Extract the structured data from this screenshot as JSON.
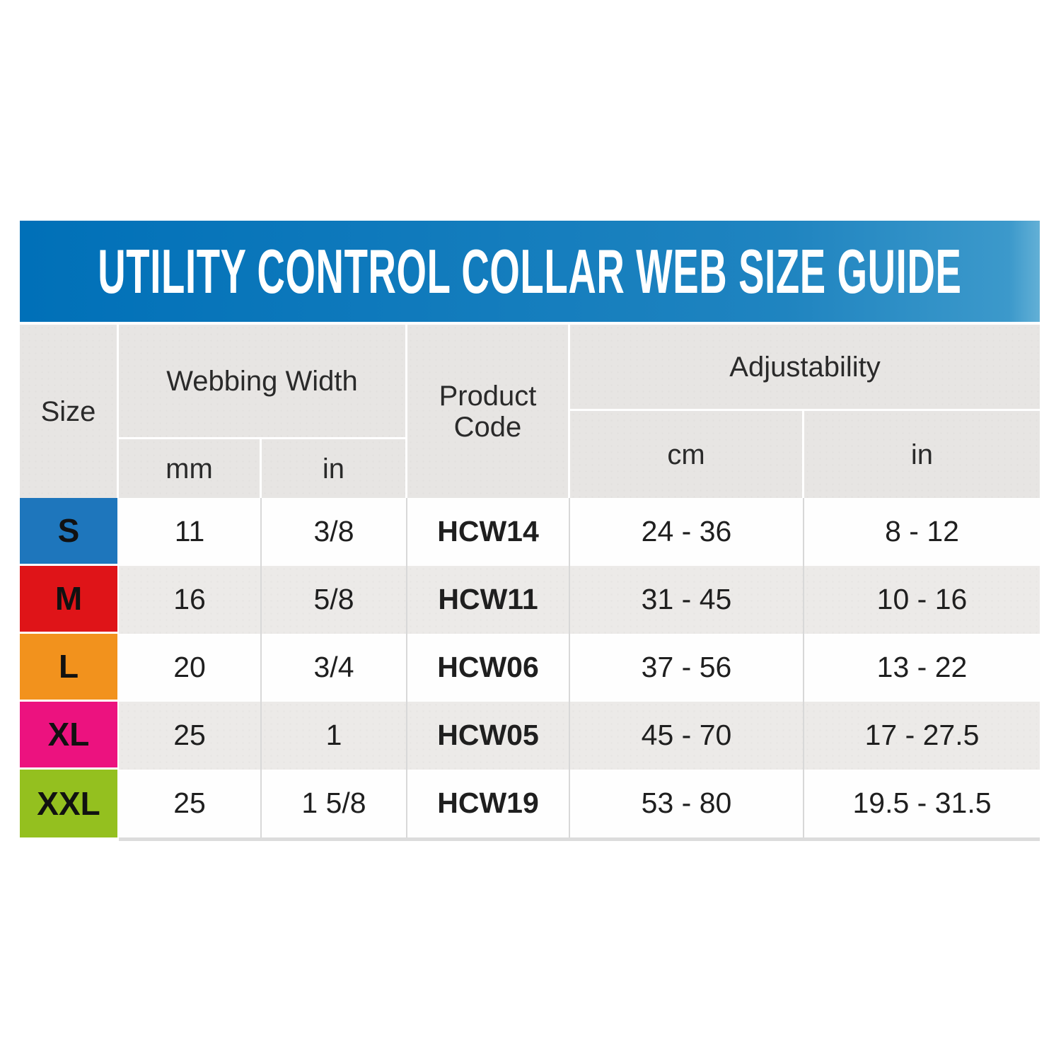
{
  "title": "UTILITY CONTROL COLLAR WEB SIZE GUIDE",
  "table": {
    "headers": {
      "size": "Size",
      "webbing_width": "Webbing Width",
      "product_code": [
        "Product",
        "Code"
      ],
      "adjustability": "Adjustability",
      "webbing_sub": [
        "mm",
        "in"
      ],
      "adjust_sub": [
        "cm",
        "in"
      ]
    },
    "rows": [
      {
        "size": "S",
        "color": "#1e76bc",
        "mm": "11",
        "in": "3/8",
        "code": "HCW14",
        "cm": "24 - 36",
        "inches": "8 - 12"
      },
      {
        "size": "M",
        "color": "#df1418",
        "mm": "16",
        "in": "5/8",
        "code": "HCW11",
        "cm": "31 - 45",
        "inches": "10 - 16"
      },
      {
        "size": "L",
        "color": "#f2921d",
        "mm": "20",
        "in": "3/4",
        "code": "HCW06",
        "cm": "37 - 56",
        "inches": "13 - 22"
      },
      {
        "size": "XL",
        "color": "#ec127f",
        "mm": "25",
        "in": "1",
        "code": "HCW05",
        "cm": "45 - 70",
        "inches": "17 - 27.5"
      },
      {
        "size": "XXL",
        "color": "#94c01f",
        "mm": "25",
        "in": "1 5/8",
        "code": "HCW19",
        "cm": "53 - 80",
        "inches": "19.5 - 31.5"
      }
    ]
  },
  "colors": {
    "title_bar_left": "#0070b8",
    "title_bar_right": "#3c99cb",
    "header_gray": "#e7e5e3",
    "alt_row_gray": "#eceae8",
    "divider_gray": "#d8d8d8",
    "size_s_blue": "#1e76bc",
    "size_m_red": "#df1418",
    "size_l_orange": "#f2921d",
    "size_xl_pink": "#ec127f",
    "size_xxl_green": "#94c01f"
  },
  "chart_data": {
    "type": "table",
    "title": "UTILITY CONTROL COLLAR WEB SIZE GUIDE",
    "columns": [
      "Size",
      "Webbing Width mm",
      "Webbing Width in",
      "Product Code",
      "Adjustability cm",
      "Adjustability in"
    ],
    "rows": [
      [
        "S",
        "11",
        "3/8",
        "HCW14",
        "24 - 36",
        "8 - 12"
      ],
      [
        "M",
        "16",
        "5/8",
        "HCW11",
        "31 - 45",
        "10 - 16"
      ],
      [
        "L",
        "20",
        "3/4",
        "HCW06",
        "37 - 56",
        "13 - 22"
      ],
      [
        "XL",
        "25",
        "1",
        "HCW05",
        "45 - 70",
        "17 - 27.5"
      ],
      [
        "XXL",
        "25",
        "1 5/8",
        "HCW19",
        "53 - 80",
        "19.5 - 31.5"
      ]
    ],
    "row_label_colors": [
      "#1e76bc",
      "#df1418",
      "#f2921d",
      "#ec127f",
      "#94c01f"
    ]
  }
}
